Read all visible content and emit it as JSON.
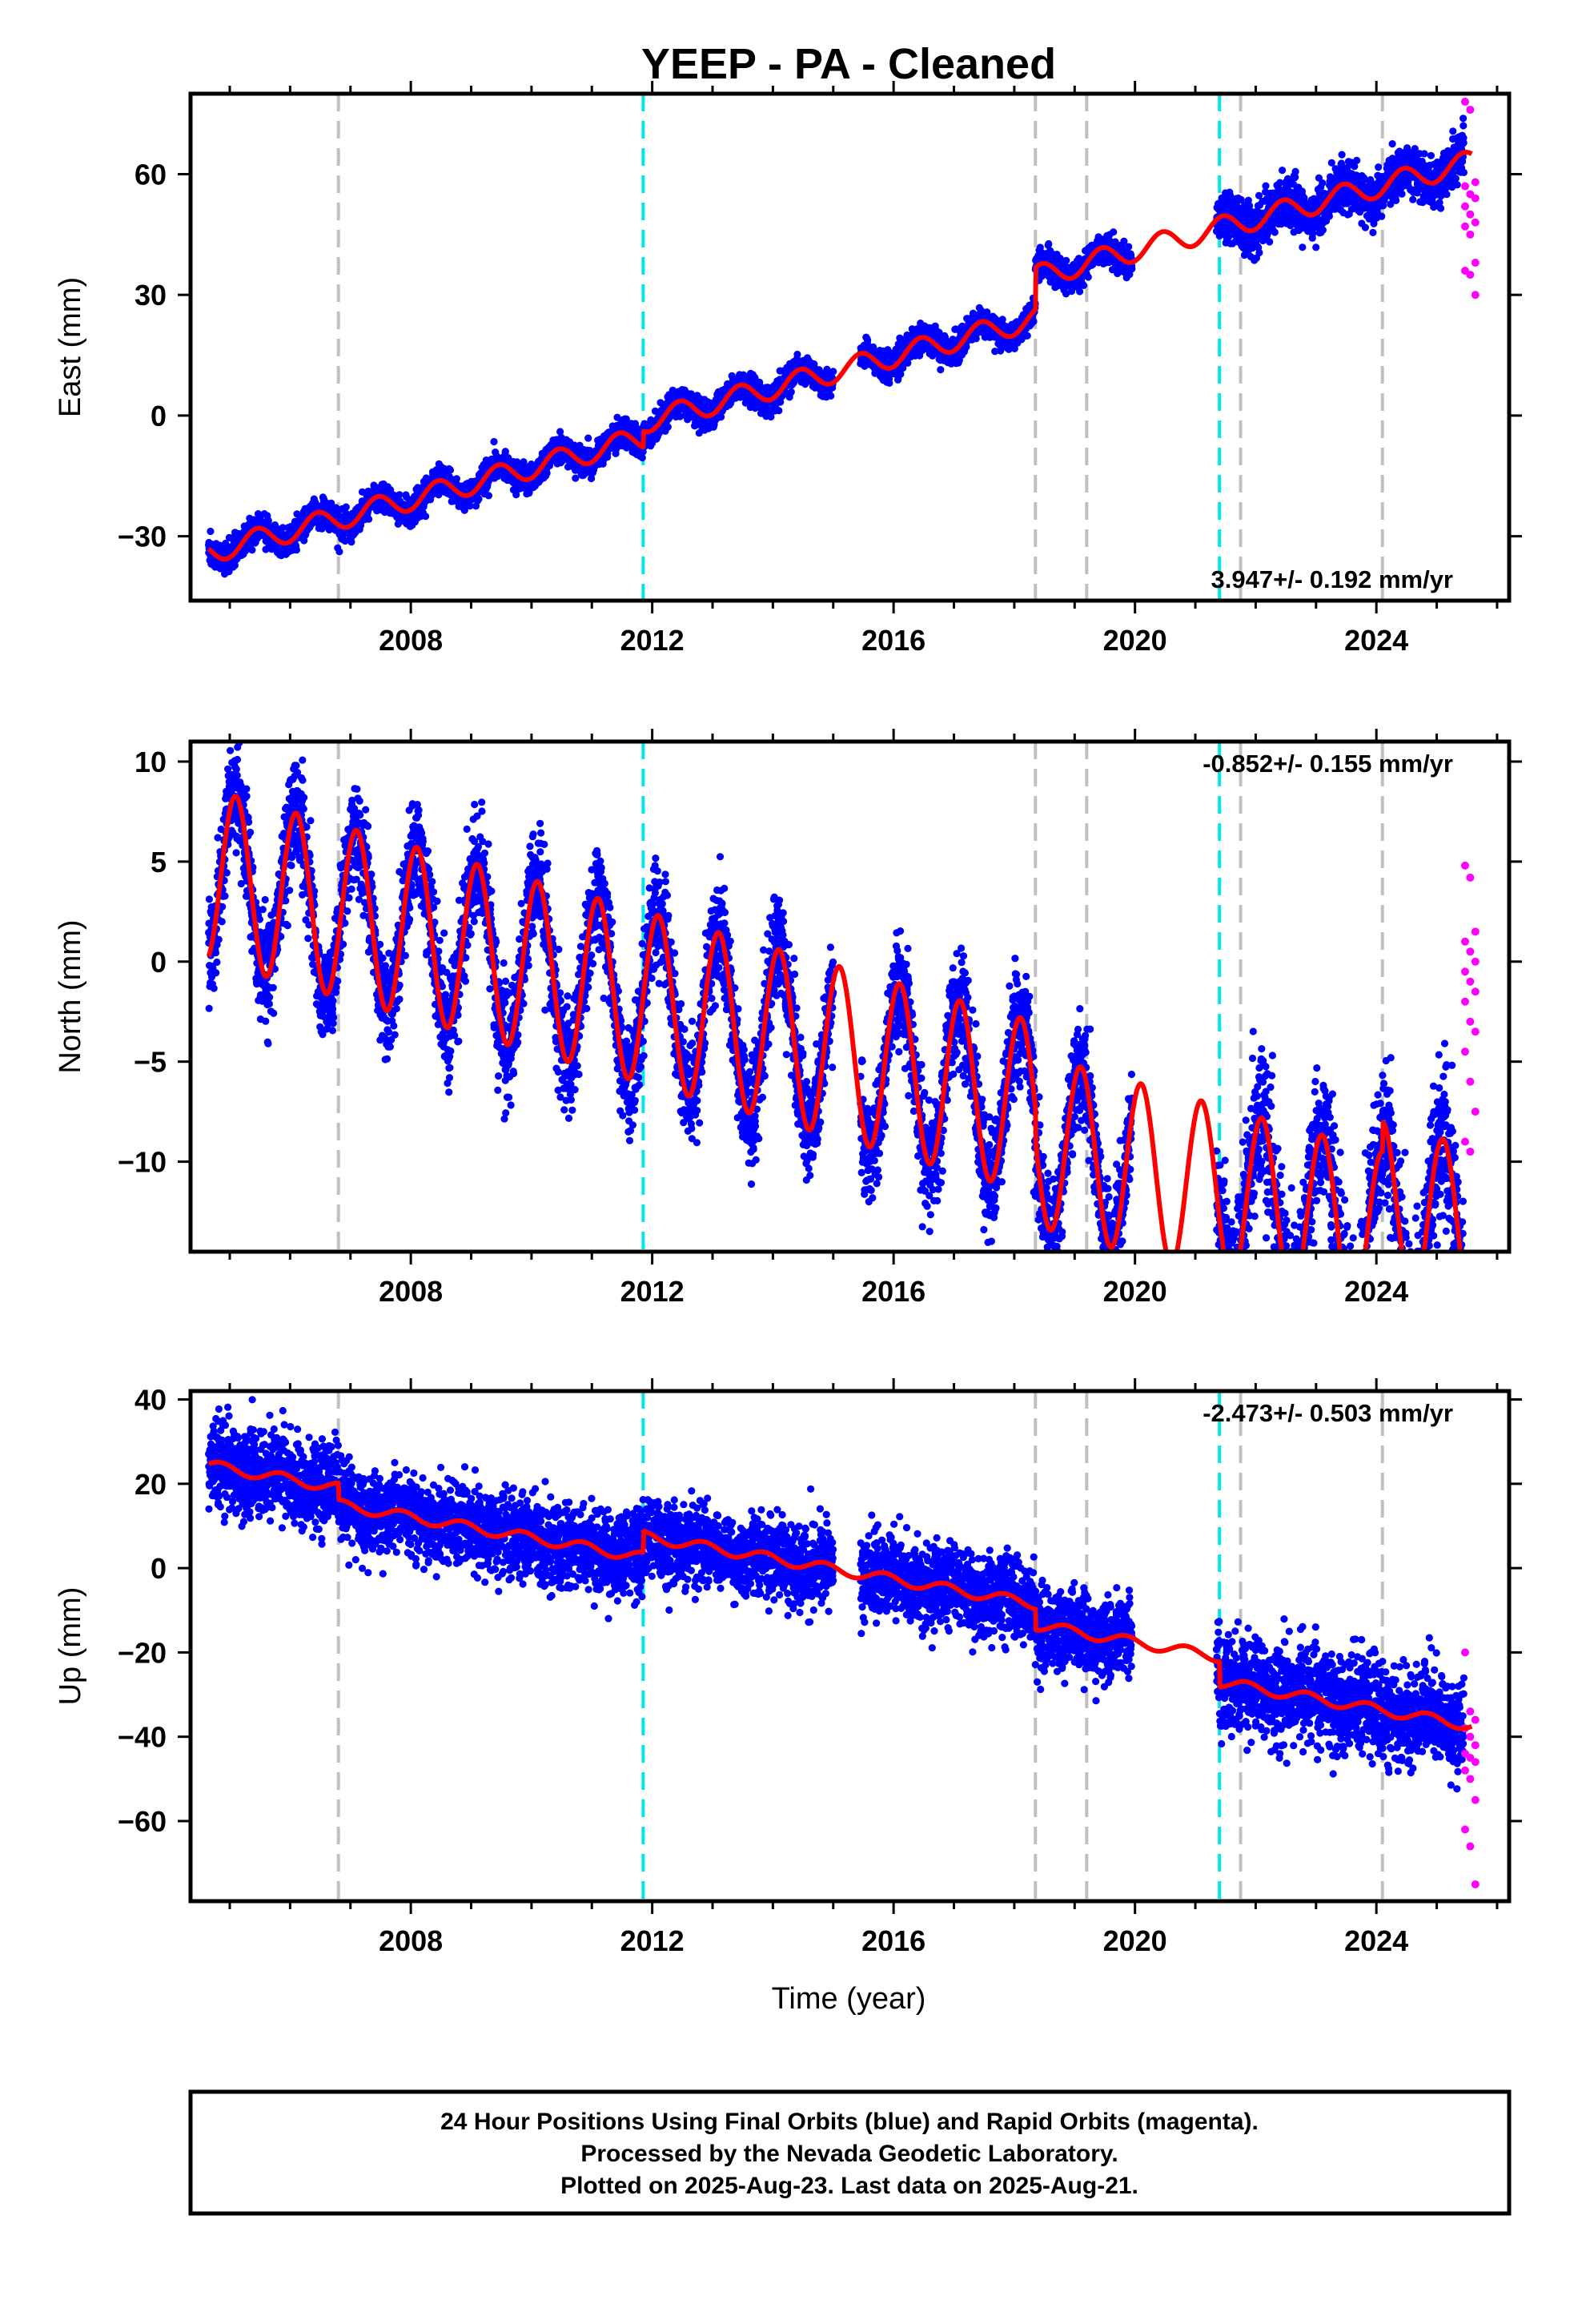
{
  "chart_data": {
    "type": "scatter",
    "title": "YEEP  - PA - Cleaned",
    "xlabel": "Time (year)",
    "xlim": [
      2004.35,
      2026.2
    ],
    "xticks": [
      2008,
      2012,
      2016,
      2020,
      2024
    ],
    "xtick_labels": [
      "2008",
      "2012",
      "2016",
      "2020",
      "2024"
    ],
    "colors": {
      "final_orbits": "#0000ff",
      "rapid_orbits": "#ff00ff",
      "model": "#ff0000",
      "equipment_change": "#c0c0c0",
      "earthquake": "#00e5ee"
    },
    "vertical_lines": {
      "gray_dashed": [
        2006.8,
        2018.35,
        2019.2,
        2021.75,
        2024.1
      ],
      "cyan_dashed": [
        2011.85,
        2021.4
      ]
    },
    "data_gaps": [
      [
        2015.0,
        2015.45
      ],
      [
        2019.95,
        2021.35
      ]
    ],
    "rapid_span": [
      2025.45,
      2025.62
    ],
    "panels": [
      {
        "id": "east",
        "ylabel": "East (mm)",
        "ylim": [
          -46,
          80
        ],
        "yticks": [
          -30,
          0,
          30,
          60
        ],
        "ytick_labels": [
          "−30",
          "0",
          "30",
          "60"
        ],
        "rate_text": "3.947+/- 0.192 mm/yr",
        "rate_position": "bottom-right",
        "model": {
          "t0": 2004.6,
          "v0": -34.2,
          "rate": 3.947,
          "annual_amp": 2.8,
          "annual_phase": 2004.2,
          "steps": [
            [
              2011.85,
              4.0
            ],
            [
              2018.35,
              10.5
            ],
            [
              2021.4,
              0.0
            ]
          ]
        },
        "scatter_sigma": 1.7,
        "extra_sigma_after": [
          2021.4,
          3.0
        ],
        "rapid_points": [
          78,
          76,
          58,
          57,
          55,
          54,
          52,
          50,
          48,
          47,
          45,
          38,
          36,
          35,
          30
        ]
      },
      {
        "id": "north",
        "ylabel": "North (mm)",
        "ylim": [
          -14.5,
          11
        ],
        "yticks": [
          -10,
          -5,
          0,
          5,
          10
        ],
        "ytick_labels": [
          "−10",
          "−5",
          "0",
          "5",
          "10"
        ],
        "rate_text": "-0.852+/- 0.155 mm/yr",
        "rate_position": "top-right",
        "model": {
          "t0": 2004.6,
          "v0": 4.4,
          "rate": -0.852,
          "annual_amp": 4.3,
          "annual_phase": 2004.85,
          "steps": [
            [
              2011.85,
              0.0
            ],
            [
              2018.35,
              -1.6
            ],
            [
              2021.4,
              0.0
            ],
            [
              2024.1,
              1.5
            ]
          ]
        },
        "scatter_sigma": 1.3,
        "extra_sigma_after": [
          2021.4,
          1.8
        ],
        "rapid_points": [
          4.8,
          4.2,
          1.5,
          1.0,
          0.5,
          0.0,
          -0.5,
          -1.0,
          -1.5,
          -2.0,
          -3.0,
          -3.5,
          -4.5,
          -6.0,
          -7.5,
          -9.0,
          -9.5
        ]
      },
      {
        "id": "up",
        "ylabel": "Up (mm)",
        "ylim": [
          -79,
          42
        ],
        "yticks": [
          -60,
          -40,
          -20,
          0,
          20,
          40
        ],
        "ytick_labels": [
          "−60",
          "−40",
          "−20",
          "0",
          "20",
          "40"
        ],
        "rate_text": "-2.473+/- 0.503 mm/yr",
        "rate_position": "top-right",
        "model": {
          "t0": 2004.6,
          "v0": 24.5,
          "rate": -2.473,
          "annual_amp": 1.2,
          "annual_phase": 2004.6,
          "steps": [
            [
              2006.8,
              -4.0
            ],
            [
              2011.85,
              5.0
            ],
            [
              2018.35,
              -5.0
            ],
            [
              2021.4,
              -6.0
            ]
          ]
        },
        "scatter_sigma": 4.8,
        "extra_sigma_after": [
          2021.4,
          5.5
        ],
        "rapid_points": [
          -20,
          -34,
          -36,
          -38,
          -40,
          -42,
          -44,
          -45,
          -46,
          -48,
          -50,
          -55,
          -62,
          -66,
          -75
        ]
      }
    ]
  },
  "footer": {
    "line1": "24 Hour Positions Using Final Orbits (blue) and Rapid Orbits (magenta).",
    "line2": "Processed by the Nevada Geodetic Laboratory.",
    "line3": "Plotted on 2025-Aug-23. Last data on 2025-Aug-21."
  }
}
